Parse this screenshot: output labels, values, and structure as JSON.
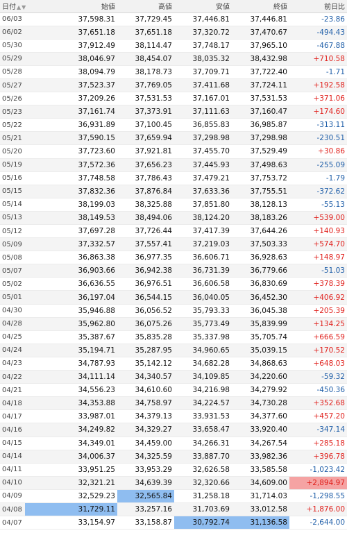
{
  "header": {
    "date_label": "日付",
    "sort_up": "▲",
    "sort_down": "▼",
    "open_label": "始値",
    "high_label": "高値",
    "low_label": "安値",
    "close_label": "終値",
    "change_label": "前日比"
  },
  "colors": {
    "positive": "#e0201c",
    "negative": "#1f5ea8",
    "highlight_blue": "#8fbdf0",
    "highlight_red": "#f5a3a3"
  },
  "rows": [
    {
      "date": "06/03",
      "open": "37,598.31",
      "high": "37,729.45",
      "low": "37,446.81",
      "close": "37,446.81",
      "change": "-23.86"
    },
    {
      "date": "06/02",
      "open": "37,651.18",
      "high": "37,651.18",
      "low": "37,320.72",
      "close": "37,470.67",
      "change": "-494.43"
    },
    {
      "date": "05/30",
      "open": "37,912.49",
      "high": "38,114.47",
      "low": "37,748.17",
      "close": "37,965.10",
      "change": "-467.88"
    },
    {
      "date": "05/29",
      "open": "38,046.97",
      "high": "38,454.07",
      "low": "38,035.32",
      "close": "38,432.98",
      "change": "+710.58"
    },
    {
      "date": "05/28",
      "open": "38,094.79",
      "high": "38,178.73",
      "low": "37,709.71",
      "close": "37,722.40",
      "change": "-1.71"
    },
    {
      "date": "05/27",
      "open": "37,523.37",
      "high": "37,769.05",
      "low": "37,411.68",
      "close": "37,724.11",
      "change": "+192.58"
    },
    {
      "date": "05/26",
      "open": "37,209.26",
      "high": "37,531.53",
      "low": "37,167.01",
      "close": "37,531.53",
      "change": "+371.06"
    },
    {
      "date": "05/23",
      "open": "37,161.74",
      "high": "37,373.91",
      "low": "37,111.63",
      "close": "37,160.47",
      "change": "+174.60"
    },
    {
      "date": "05/22",
      "open": "36,931.89",
      "high": "37,100.45",
      "low": "36,855.83",
      "close": "36,985.87",
      "change": "-313.11"
    },
    {
      "date": "05/21",
      "open": "37,590.15",
      "high": "37,659.94",
      "low": "37,298.98",
      "close": "37,298.98",
      "change": "-230.51"
    },
    {
      "date": "05/20",
      "open": "37,723.60",
      "high": "37,921.81",
      "low": "37,455.70",
      "close": "37,529.49",
      "change": "+30.86"
    },
    {
      "date": "05/19",
      "open": "37,572.36",
      "high": "37,656.23",
      "low": "37,445.93",
      "close": "37,498.63",
      "change": "-255.09"
    },
    {
      "date": "05/16",
      "open": "37,748.58",
      "high": "37,786.43",
      "low": "37,479.21",
      "close": "37,753.72",
      "change": "-1.79"
    },
    {
      "date": "05/15",
      "open": "37,832.36",
      "high": "37,876.84",
      "low": "37,633.36",
      "close": "37,755.51",
      "change": "-372.62"
    },
    {
      "date": "05/14",
      "open": "38,199.03",
      "high": "38,325.88",
      "low": "37,851.80",
      "close": "38,128.13",
      "change": "-55.13"
    },
    {
      "date": "05/13",
      "open": "38,149.53",
      "high": "38,494.06",
      "low": "38,124.20",
      "close": "38,183.26",
      "change": "+539.00"
    },
    {
      "date": "05/12",
      "open": "37,697.28",
      "high": "37,726.44",
      "low": "37,417.39",
      "close": "37,644.26",
      "change": "+140.93"
    },
    {
      "date": "05/09",
      "open": "37,332.57",
      "high": "37,557.41",
      "low": "37,219.03",
      "close": "37,503.33",
      "change": "+574.70"
    },
    {
      "date": "05/08",
      "open": "36,863.38",
      "high": "36,977.35",
      "low": "36,606.71",
      "close": "36,928.63",
      "change": "+148.97"
    },
    {
      "date": "05/07",
      "open": "36,903.66",
      "high": "36,942.38",
      "low": "36,731.39",
      "close": "36,779.66",
      "change": "-51.03"
    },
    {
      "date": "05/02",
      "open": "36,636.55",
      "high": "36,976.51",
      "low": "36,606.58",
      "close": "36,830.69",
      "change": "+378.39"
    },
    {
      "date": "05/01",
      "open": "36,197.04",
      "high": "36,544.15",
      "low": "36,040.05",
      "close": "36,452.30",
      "change": "+406.92"
    },
    {
      "date": "04/30",
      "open": "35,946.88",
      "high": "36,056.52",
      "low": "35,793.33",
      "close": "36,045.38",
      "change": "+205.39"
    },
    {
      "date": "04/28",
      "open": "35,962.80",
      "high": "36,075.26",
      "low": "35,773.49",
      "close": "35,839.99",
      "change": "+134.25"
    },
    {
      "date": "04/25",
      "open": "35,387.67",
      "high": "35,835.28",
      "low": "35,337.98",
      "close": "35,705.74",
      "change": "+666.59"
    },
    {
      "date": "04/24",
      "open": "35,194.71",
      "high": "35,287.95",
      "low": "34,960.65",
      "close": "35,039.15",
      "change": "+170.52"
    },
    {
      "date": "04/23",
      "open": "34,787.93",
      "high": "35,142.12",
      "low": "34,682.28",
      "close": "34,868.63",
      "change": "+648.03"
    },
    {
      "date": "04/22",
      "open": "34,111.14",
      "high": "34,340.57",
      "low": "34,109.85",
      "close": "34,220.60",
      "change": "-59.32"
    },
    {
      "date": "04/21",
      "open": "34,556.23",
      "high": "34,610.60",
      "low": "34,216.98",
      "close": "34,279.92",
      "change": "-450.36"
    },
    {
      "date": "04/18",
      "open": "34,353.88",
      "high": "34,758.97",
      "low": "34,224.57",
      "close": "34,730.28",
      "change": "+352.68"
    },
    {
      "date": "04/17",
      "open": "33,987.01",
      "high": "34,379.13",
      "low": "33,931.53",
      "close": "34,377.60",
      "change": "+457.20"
    },
    {
      "date": "04/16",
      "open": "34,249.82",
      "high": "34,329.27",
      "low": "33,658.47",
      "close": "33,920.40",
      "change": "-347.14"
    },
    {
      "date": "04/15",
      "open": "34,349.01",
      "high": "34,459.00",
      "low": "34,266.31",
      "close": "34,267.54",
      "change": "+285.18"
    },
    {
      "date": "04/14",
      "open": "34,006.37",
      "high": "34,325.59",
      "low": "33,887.70",
      "close": "33,982.36",
      "change": "+396.78"
    },
    {
      "date": "04/11",
      "open": "33,951.25",
      "high": "33,953.29",
      "low": "32,626.58",
      "close": "33,585.58",
      "change": "-1,023.42"
    },
    {
      "date": "04/10",
      "open": "32,321.21",
      "high": "34,639.39",
      "low": "32,320.66",
      "close": "34,609.00",
      "change": "+2,894.97"
    },
    {
      "date": "04/09",
      "open": "32,529.23",
      "high": "32,565.84",
      "low": "31,258.18",
      "close": "31,714.03",
      "change": "-1,298.55"
    },
    {
      "date": "04/08",
      "open": "31,729.11",
      "high": "33,257.16",
      "low": "31,703.69",
      "close": "33,012.58",
      "change": "+1,876.00"
    },
    {
      "date": "04/07",
      "open": "33,154.97",
      "high": "33,158.87",
      "low": "30,792.74",
      "close": "31,136.58",
      "change": "-2,644.00"
    }
  ]
}
